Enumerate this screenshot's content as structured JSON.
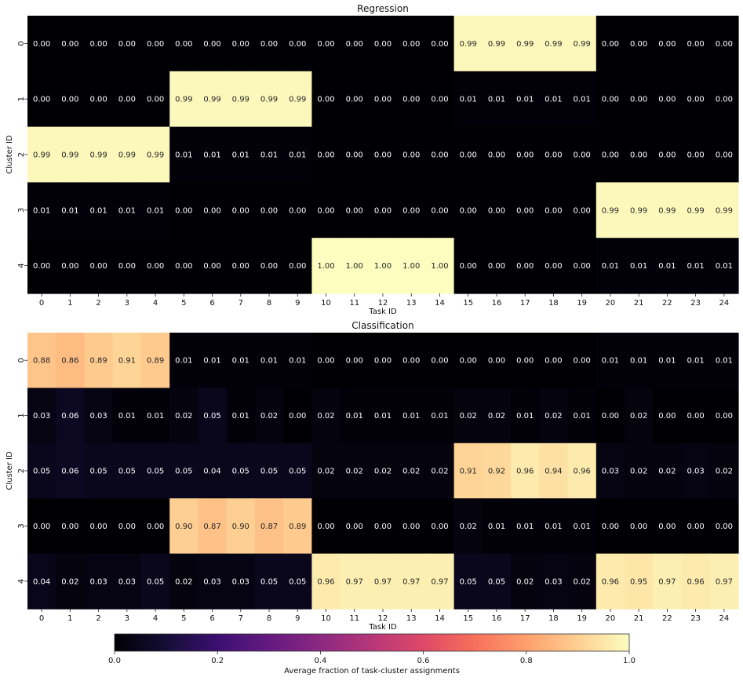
{
  "chart_data": [
    {
      "type": "heatmap",
      "title": "Regression",
      "xlabel": "Task ID",
      "ylabel": "Cluster ID",
      "x_ticks": [
        "0",
        "1",
        "2",
        "3",
        "4",
        "5",
        "6",
        "7",
        "8",
        "9",
        "10",
        "11",
        "12",
        "13",
        "14",
        "15",
        "16",
        "17",
        "18",
        "19",
        "20",
        "21",
        "22",
        "23",
        "24"
      ],
      "y_ticks": [
        "0",
        "1",
        "2",
        "3",
        "4"
      ],
      "values": [
        [
          0.0,
          0.0,
          0.0,
          0.0,
          0.0,
          0.0,
          0.0,
          0.0,
          0.0,
          0.0,
          0.0,
          0.0,
          0.0,
          0.0,
          0.0,
          0.99,
          0.99,
          0.99,
          0.99,
          0.99,
          0.0,
          0.0,
          0.0,
          0.0,
          0.0
        ],
        [
          0.0,
          0.0,
          0.0,
          0.0,
          0.0,
          0.99,
          0.99,
          0.99,
          0.99,
          0.99,
          0.0,
          0.0,
          0.0,
          0.0,
          0.0,
          0.01,
          0.01,
          0.01,
          0.01,
          0.01,
          0.0,
          0.0,
          0.0,
          0.0,
          0.0
        ],
        [
          0.99,
          0.99,
          0.99,
          0.99,
          0.99,
          0.01,
          0.01,
          0.01,
          0.01,
          0.01,
          0.0,
          0.0,
          0.0,
          0.0,
          0.0,
          0.0,
          0.0,
          0.0,
          0.0,
          0.0,
          0.0,
          0.0,
          0.0,
          0.0,
          0.0
        ],
        [
          0.01,
          0.01,
          0.01,
          0.01,
          0.01,
          0.0,
          0.0,
          0.0,
          0.0,
          0.0,
          0.0,
          0.0,
          0.0,
          0.0,
          0.0,
          0.0,
          0.0,
          0.0,
          0.0,
          0.0,
          0.99,
          0.99,
          0.99,
          0.99,
          0.99
        ],
        [
          0.0,
          0.0,
          0.0,
          0.0,
          0.0,
          0.0,
          0.0,
          0.0,
          0.0,
          0.0,
          1.0,
          1.0,
          1.0,
          1.0,
          1.0,
          0.0,
          0.0,
          0.0,
          0.0,
          0.0,
          0.01,
          0.01,
          0.01,
          0.01,
          0.01
        ]
      ],
      "value_format": "0.00",
      "colormap": "magma",
      "vmin": 0.0,
      "vmax": 1.0
    },
    {
      "type": "heatmap",
      "title": "Classification",
      "xlabel": "Task ID",
      "ylabel": "Cluster ID",
      "x_ticks": [
        "0",
        "1",
        "2",
        "3",
        "4",
        "5",
        "6",
        "7",
        "8",
        "9",
        "10",
        "11",
        "12",
        "13",
        "14",
        "15",
        "16",
        "17",
        "18",
        "19",
        "20",
        "21",
        "22",
        "23",
        "24"
      ],
      "y_ticks": [
        "0",
        "1",
        "2",
        "3",
        "4"
      ],
      "values": [
        [
          0.88,
          0.86,
          0.89,
          0.91,
          0.89,
          0.01,
          0.01,
          0.01,
          0.01,
          0.01,
          0.0,
          0.0,
          0.0,
          0.0,
          0.0,
          0.0,
          0.0,
          0.0,
          0.0,
          0.0,
          0.01,
          0.01,
          0.01,
          0.01,
          0.01
        ],
        [
          0.03,
          0.06,
          0.03,
          0.01,
          0.01,
          0.02,
          0.05,
          0.01,
          0.02,
          0.0,
          0.02,
          0.01,
          0.01,
          0.01,
          0.01,
          0.02,
          0.02,
          0.01,
          0.02,
          0.01,
          0.0,
          0.02,
          0.0,
          0.0,
          0.0
        ],
        [
          0.05,
          0.06,
          0.05,
          0.05,
          0.05,
          0.05,
          0.04,
          0.05,
          0.05,
          0.05,
          0.02,
          0.02,
          0.02,
          0.02,
          0.02,
          0.91,
          0.92,
          0.96,
          0.94,
          0.96,
          0.03,
          0.02,
          0.02,
          0.03,
          0.02
        ],
        [
          0.0,
          0.0,
          0.0,
          0.0,
          0.0,
          0.9,
          0.87,
          0.9,
          0.87,
          0.89,
          0.0,
          0.0,
          0.0,
          0.0,
          0.0,
          0.02,
          0.01,
          0.01,
          0.01,
          0.01,
          0.0,
          0.0,
          0.0,
          0.0,
          0.0
        ],
        [
          0.04,
          0.02,
          0.03,
          0.03,
          0.05,
          0.02,
          0.03,
          0.03,
          0.05,
          0.05,
          0.96,
          0.97,
          0.97,
          0.97,
          0.97,
          0.05,
          0.05,
          0.02,
          0.03,
          0.02,
          0.96,
          0.95,
          0.97,
          0.96,
          0.97
        ]
      ],
      "value_format": "0.00",
      "colormap": "magma",
      "vmin": 0.0,
      "vmax": 1.0
    }
  ],
  "colorbar": {
    "label": "Average fraction of task-cluster assignments",
    "ticks": [
      "0.0",
      "0.2",
      "0.4",
      "0.6",
      "0.8",
      "1.0"
    ],
    "tick_values": [
      0.0,
      0.2,
      0.4,
      0.6,
      0.8,
      1.0
    ],
    "orientation": "horizontal",
    "colormap": "magma"
  }
}
